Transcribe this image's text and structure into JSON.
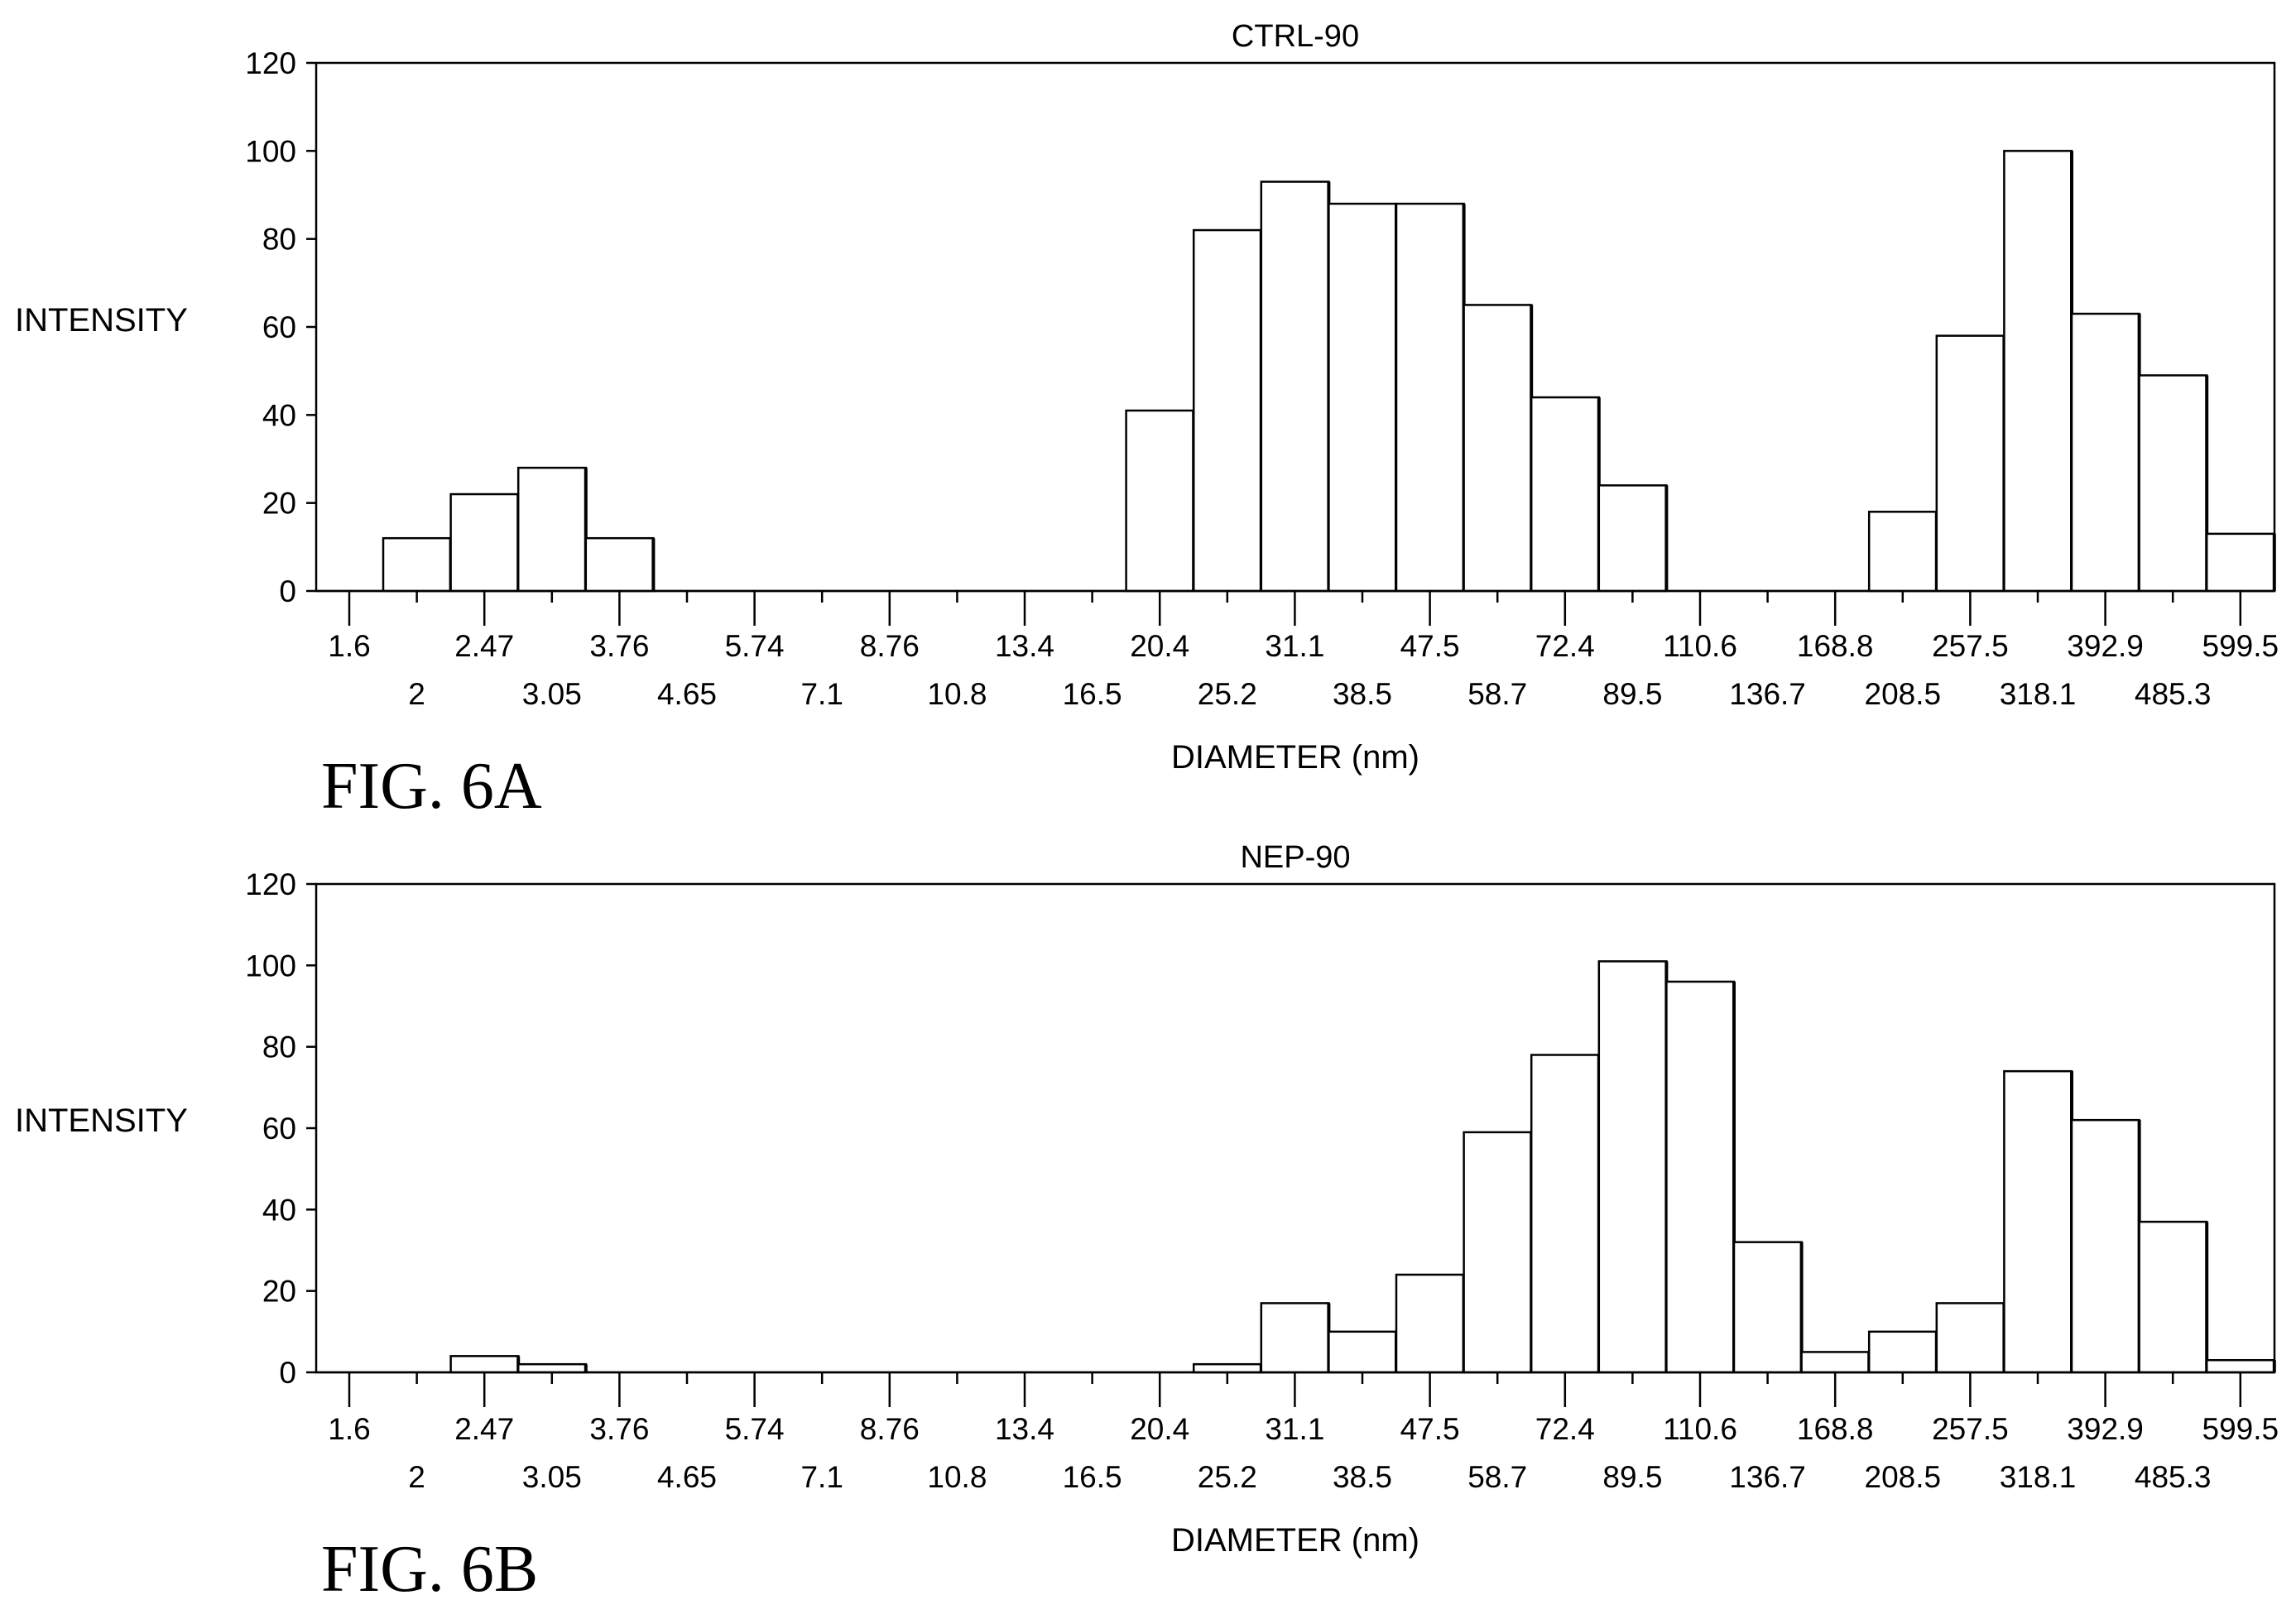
{
  "chart_data": [
    {
      "type": "bar",
      "title": "CTRL-90",
      "figure_label": "FIG. 6A",
      "xlabel": "DIAMETER (nm)",
      "ylabel": "INTENSITY",
      "ylim": [
        0,
        120
      ],
      "yticks": [
        "0",
        "20",
        "40",
        "60",
        "80",
        "100",
        "120"
      ],
      "xticks_top": [
        "1.6",
        "2.47",
        "3.76",
        "5.74",
        "8.76",
        "13.4",
        "20.4",
        "31.1",
        "47.5",
        "72.4",
        "110.6",
        "168.8",
        "257.5",
        "392.9",
        "599.5"
      ],
      "xticks_bottom": [
        "2",
        "3.05",
        "4.65",
        "7.1",
        "10.8",
        "16.5",
        "25.2",
        "38.5",
        "58.7",
        "89.5",
        "136.7",
        "208.5",
        "318.1",
        "485.3"
      ],
      "values": [
        12,
        22,
        28,
        12,
        0,
        0,
        0,
        0,
        0,
        0,
        0,
        41,
        82,
        93,
        88,
        88,
        65,
        44,
        24,
        0,
        0,
        0,
        18,
        58,
        100,
        63,
        49,
        13
      ]
    },
    {
      "type": "bar",
      "title": "NEP-90",
      "figure_label": "FIG. 6B",
      "xlabel": "DIAMETER (nm)",
      "ylabel": "INTENSITY",
      "ylim": [
        0,
        120
      ],
      "yticks": [
        "0",
        "20",
        "40",
        "60",
        "80",
        "100",
        "120"
      ],
      "xticks_top": [
        "1.6",
        "2.47",
        "3.76",
        "5.74",
        "8.76",
        "13.4",
        "20.4",
        "31.1",
        "47.5",
        "72.4",
        "110.6",
        "168.8",
        "257.5",
        "392.9",
        "599.5"
      ],
      "xticks_bottom": [
        "2",
        "3.05",
        "4.65",
        "7.1",
        "10.8",
        "16.5",
        "25.2",
        "38.5",
        "58.7",
        "89.5",
        "136.7",
        "208.5",
        "318.1",
        "485.3"
      ],
      "values": [
        0,
        4,
        2,
        0,
        0,
        0,
        0,
        0,
        0,
        0,
        0,
        0,
        2,
        17,
        10,
        24,
        59,
        78,
        101,
        96,
        32,
        5,
        10,
        17,
        74,
        62,
        37,
        3
      ]
    }
  ]
}
